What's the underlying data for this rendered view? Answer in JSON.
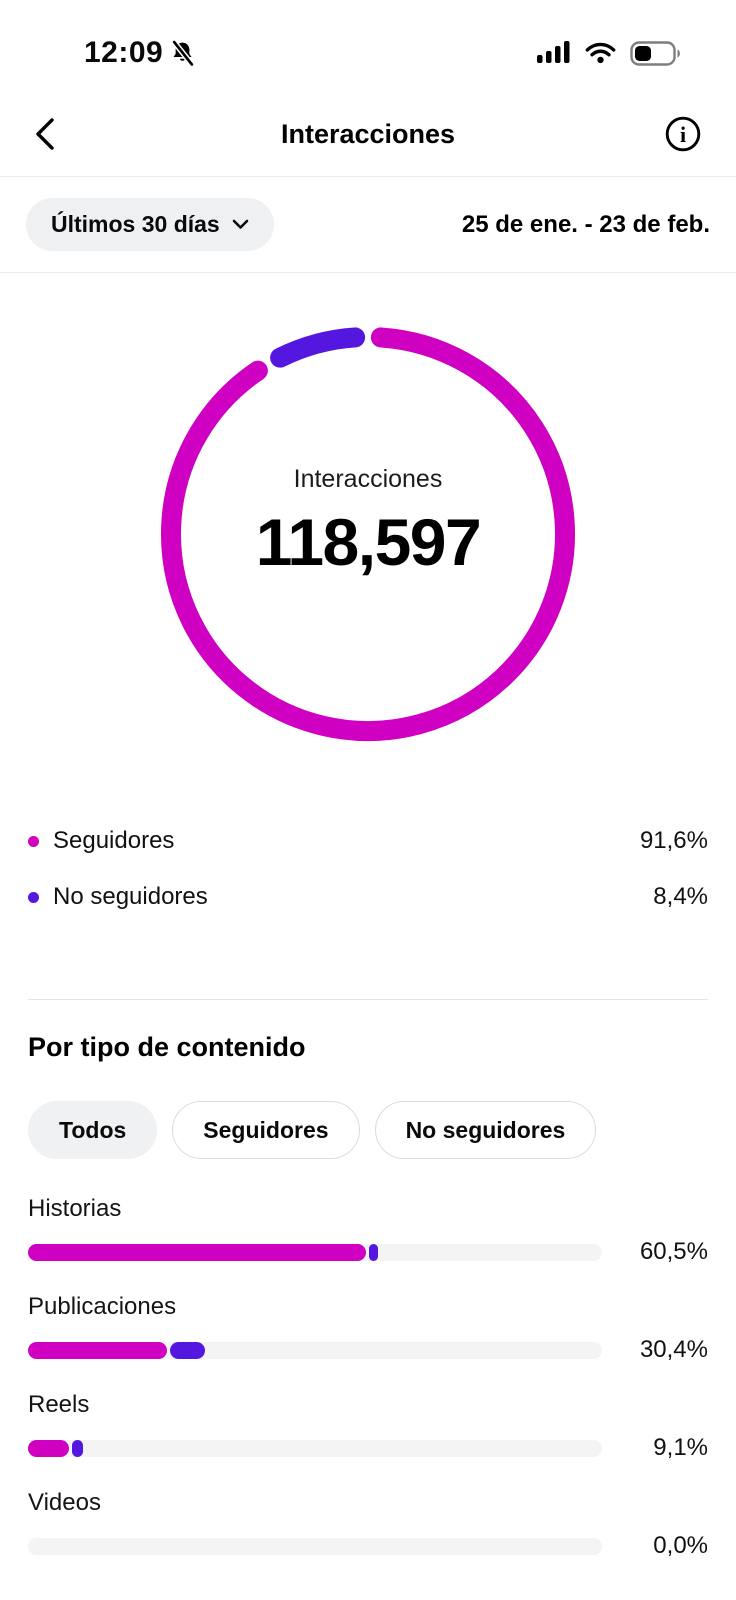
{
  "status_bar": {
    "time": "12:09",
    "icons": [
      "bell-muted-icon",
      "cellular-signal-icon",
      "wifi-icon",
      "battery-icon"
    ],
    "battery_level_pct": 40
  },
  "header": {
    "title": "Interacciones",
    "icons": [
      "back-chevron-icon",
      "info-icon"
    ]
  },
  "filters": {
    "period_label": "Últimos 30 días",
    "period_icon": "chevron-down-icon",
    "date_range": "25 de ene. - 23 de feb."
  },
  "colors": {
    "followers": "#D000C2",
    "non_followers": "#5417E0",
    "track": "#f4f4f5"
  },
  "chart_data": [
    {
      "type": "donut",
      "center_label": "Interacciones",
      "center_value": "118,597",
      "total_value": 118597,
      "legend_position": "below",
      "segments": [
        {
          "label": "Seguidores",
          "value_pct": 91.6,
          "display": "91,6%",
          "color": "#D000C2"
        },
        {
          "label": "No seguidores",
          "value_pct": 8.4,
          "display": "8,4%",
          "color": "#5417E0"
        }
      ]
    },
    {
      "type": "bar",
      "title": "Por tipo de contenido",
      "orientation": "horizontal",
      "xlim": [
        0,
        100
      ],
      "categories": [
        "Historias",
        "Publicaciones",
        "Reels",
        "Videos"
      ],
      "values": [
        60.5,
        30.4,
        9.1,
        0.0
      ],
      "value_displays": [
        "60,5%",
        "30,4%",
        "9,1%",
        "0,0%"
      ],
      "series": [
        {
          "name": "Seguidores",
          "color": "#D000C2",
          "values": [
            58.8,
            24.3,
            7.2,
            0
          ]
        },
        {
          "name": "No seguidores",
          "color": "#5417E0",
          "values": [
            1.7,
            6.1,
            1.9,
            0
          ]
        }
      ]
    }
  ],
  "content_section": {
    "title": "Por tipo de contenido",
    "chips": [
      {
        "label": "Todos",
        "selected": true
      },
      {
        "label": "Seguidores",
        "selected": false
      },
      {
        "label": "No seguidores",
        "selected": false
      }
    ]
  }
}
